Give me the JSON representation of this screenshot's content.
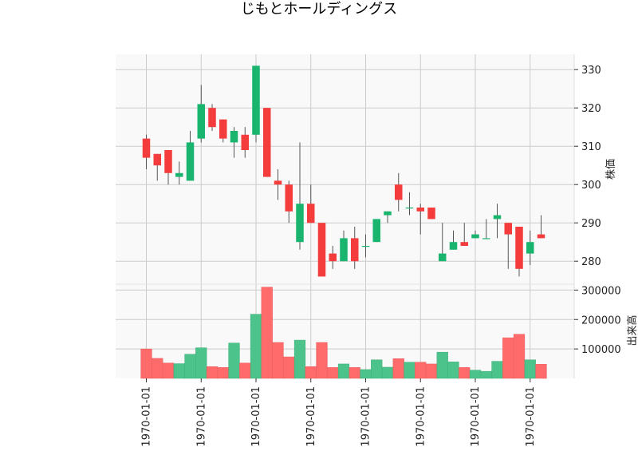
{
  "chart_data": {
    "type": "candlestick",
    "title": "じもとホールディングス",
    "price_ylabel": "株価",
    "volume_ylabel": "出来高",
    "price_ylim": [
      274,
      334
    ],
    "price_yticks": [
      "280",
      "290",
      "300",
      "310",
      "320",
      "330"
    ],
    "volume_ylim": [
      0,
      320000
    ],
    "volume_yticks": [
      "100000",
      "200000",
      "300000"
    ],
    "x_tick_labels": [
      "1970-01-01",
      "1970-01-01",
      "1970-01-01",
      "1970-01-01",
      "1970-01-01",
      "1970-01-01",
      "1970-01-01",
      "1970-01-01"
    ],
    "x_tick_index": [
      0,
      5,
      10,
      15,
      20,
      25,
      30,
      35
    ],
    "colors": {
      "up": "#19b46e",
      "down": "#f43c3c",
      "wick": "#555555",
      "vol_up": "#4cc38a",
      "vol_down": "#ff6b6b",
      "grid": "#cccccc",
      "panel_bg": "#f9f9f9"
    },
    "candles": [
      {
        "open": 312,
        "high": 313,
        "low": 304,
        "close": 307,
        "volume": 100000
      },
      {
        "open": 308,
        "high": 308,
        "low": 301,
        "close": 305,
        "volume": 68000
      },
      {
        "open": 309,
        "high": 309,
        "low": 300,
        "close": 303,
        "volume": 52000
      },
      {
        "open": 302,
        "high": 306,
        "low": 300,
        "close": 303,
        "volume": 50000
      },
      {
        "open": 301,
        "high": 314,
        "low": 301,
        "close": 311,
        "volume": 82000
      },
      {
        "open": 312,
        "high": 326,
        "low": 311,
        "close": 321,
        "volume": 104000
      },
      {
        "open": 320,
        "high": 321,
        "low": 314,
        "close": 315,
        "volume": 40000
      },
      {
        "open": 317,
        "high": 317,
        "low": 311,
        "close": 312,
        "volume": 37000
      },
      {
        "open": 311,
        "high": 315,
        "low": 307,
        "close": 314,
        "volume": 120000
      },
      {
        "open": 313,
        "high": 315,
        "low": 307,
        "close": 309,
        "volume": 52000
      },
      {
        "open": 313,
        "high": 331,
        "low": 311,
        "close": 331,
        "volume": 218000
      },
      {
        "open": 320,
        "high": 320,
        "low": 302,
        "close": 302,
        "volume": 310000
      },
      {
        "open": 301,
        "high": 304,
        "low": 296,
        "close": 300,
        "volume": 122000
      },
      {
        "open": 300,
        "high": 301,
        "low": 290,
        "close": 293,
        "volume": 73000
      },
      {
        "open": 285,
        "high": 311,
        "low": 283,
        "close": 295,
        "volume": 130000
      },
      {
        "open": 295,
        "high": 300,
        "low": 290,
        "close": 290,
        "volume": 40000
      },
      {
        "open": 290,
        "high": 290,
        "low": 276,
        "close": 276,
        "volume": 122000
      },
      {
        "open": 282,
        "high": 284,
        "low": 278,
        "close": 280,
        "volume": 37000
      },
      {
        "open": 280,
        "high": 288,
        "low": 280,
        "close": 286,
        "volume": 49000
      },
      {
        "open": 286,
        "high": 289,
        "low": 278,
        "close": 280,
        "volume": 37000
      },
      {
        "open": 284,
        "high": 287,
        "low": 281,
        "close": 284,
        "volume": 30000
      },
      {
        "open": 285,
        "high": 291,
        "low": 285,
        "close": 291,
        "volume": 63000
      },
      {
        "open": 292,
        "high": 293,
        "low": 290,
        "close": 293,
        "volume": 38000
      },
      {
        "open": 300,
        "high": 303,
        "low": 293,
        "close": 296,
        "volume": 67000
      },
      {
        "open": 294,
        "high": 298,
        "low": 292,
        "close": 294,
        "volume": 55000
      },
      {
        "open": 294,
        "high": 295,
        "low": 287,
        "close": 293,
        "volume": 55000
      },
      {
        "open": 294,
        "high": 294,
        "low": 291,
        "close": 291,
        "volume": 49000
      },
      {
        "open": 280,
        "high": 290,
        "low": 280,
        "close": 282,
        "volume": 89000
      },
      {
        "open": 283,
        "high": 288,
        "low": 283,
        "close": 285,
        "volume": 56000
      },
      {
        "open": 285,
        "high": 290,
        "low": 284,
        "close": 284,
        "volume": 37000
      },
      {
        "open": 286,
        "high": 288,
        "low": 286,
        "close": 287,
        "volume": 28000
      },
      {
        "open": 286,
        "high": 291,
        "low": 286,
        "close": 286,
        "volume": 24000
      },
      {
        "open": 291,
        "high": 295,
        "low": 286,
        "close": 292,
        "volume": 58000
      },
      {
        "open": 290,
        "high": 290,
        "low": 278,
        "close": 287,
        "volume": 138000
      },
      {
        "open": 289,
        "high": 289,
        "low": 276,
        "close": 278,
        "volume": 150000
      },
      {
        "open": 282,
        "high": 288,
        "low": 279,
        "close": 285,
        "volume": 63000
      },
      {
        "open": 287,
        "high": 292,
        "low": 286,
        "close": 286,
        "volume": 48000
      }
    ]
  }
}
